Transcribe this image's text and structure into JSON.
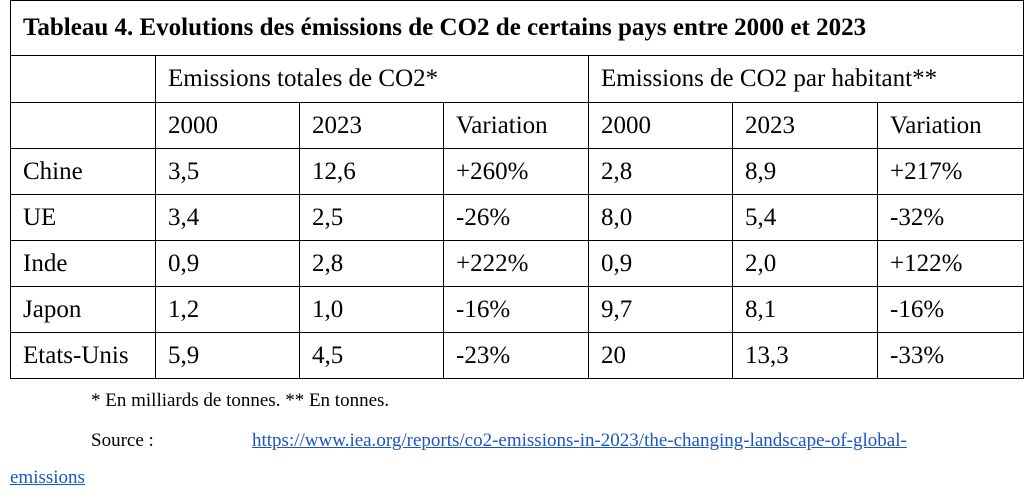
{
  "table": {
    "title": "Tableau 4. Evolutions des émissions de CO2 de certains pays entre 2000 et 2023",
    "group_headers": [
      "Emissions totales de CO2*",
      "Emissions de CO2 par habitant**"
    ],
    "sub_headers": [
      "2000",
      "2023",
      "Variation",
      "2000",
      "2023",
      "Variation"
    ],
    "rows": [
      {
        "country": "Chine",
        "cells": [
          "3,5",
          "12,6",
          "+260%",
          "2,8",
          "8,9",
          "+217%"
        ]
      },
      {
        "country": "UE",
        "cells": [
          "3,4",
          "2,5",
          "-26%",
          "8,0",
          "5,4",
          "-32%"
        ]
      },
      {
        "country": "Inde",
        "cells": [
          "0,9",
          "2,8",
          "+222%",
          "0,9",
          "2,0",
          "+122%"
        ]
      },
      {
        "country": "Japon",
        "cells": [
          "1,2",
          "1,0",
          "-16%",
          "9,7",
          "8,1",
          "-16%"
        ]
      },
      {
        "country": "Etats-Unis",
        "cells": [
          "5,9",
          "4,5",
          "-23%",
          "20",
          "13,3",
          "-33%"
        ]
      }
    ]
  },
  "footnote": "* En milliards de tonnes. ** En tonnes.",
  "source_label": "Source :",
  "source_link_line1": "https://www.iea.org/reports/co2-emissions-in-2023/the-changing-landscape-of-global-",
  "source_link_line2": "emissions"
}
